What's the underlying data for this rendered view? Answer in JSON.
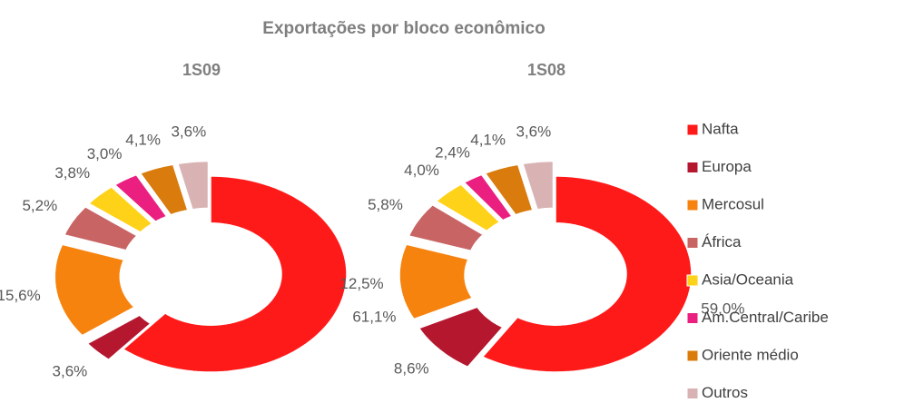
{
  "title": "Exportações por bloco econômico",
  "chart_data": [
    {
      "type": "donut",
      "title": "1S09",
      "categories": [
        "Nafta",
        "Europa",
        "Mercosul",
        "África",
        "Asia/Oceania",
        "Am.Central/Caribe",
        "Oriente médio",
        "Outros"
      ],
      "values": [
        61.1,
        3.6,
        15.6,
        5.2,
        3.8,
        3.0,
        4.1,
        3.6
      ],
      "value_labels": [
        "61,1%",
        "3,6%",
        "15,6%",
        "5,2%",
        "3,8%",
        "3,0%",
        "4,1%",
        "3,6%"
      ],
      "colors": [
        "#ff1a1a",
        "#b5172f",
        "#f7830f",
        "#c96464",
        "#ffd21a",
        "#ea1f7f",
        "#d97b0d",
        "#d9b3b3"
      ]
    },
    {
      "type": "donut",
      "title": "1S08",
      "categories": [
        "Nafta",
        "Europa",
        "Mercosul",
        "África",
        "Asia/Oceania",
        "Am.Central/Caribe",
        "Oriente médio",
        "Outros"
      ],
      "values": [
        59.0,
        8.6,
        12.5,
        5.8,
        4.0,
        2.4,
        4.1,
        3.6
      ],
      "value_labels": [
        "59,0%",
        "8,6%",
        "12,5%",
        "5,8%",
        "4,0%",
        "2,4%",
        "4,1%",
        "3,6%"
      ],
      "colors": [
        "#ff1a1a",
        "#b5172f",
        "#f7830f",
        "#c96464",
        "#ffd21a",
        "#ea1f7f",
        "#d97b0d",
        "#d9b3b3"
      ]
    }
  ]
}
